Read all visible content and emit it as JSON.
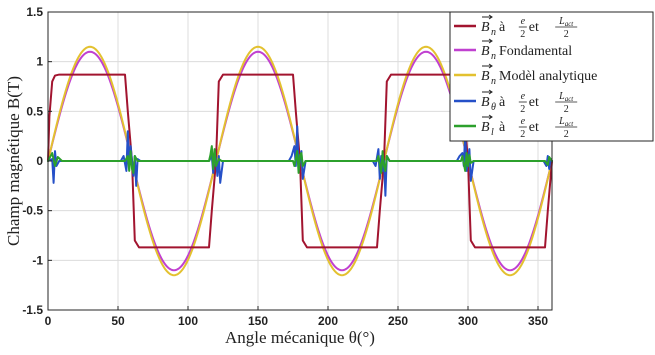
{
  "chart_data": {
    "type": "line",
    "xlabel": "Angle mécanique θ(°)",
    "ylabel": "Champ magnétique B(T)",
    "xlim": [
      0,
      360
    ],
    "ylim": [
      -1.5,
      1.5
    ],
    "xticks": [
      0,
      50,
      100,
      150,
      200,
      250,
      300,
      350
    ],
    "yticks": [
      -1.5,
      -1,
      -0.5,
      0,
      0.5,
      1,
      1.5
    ],
    "xtick_labels": [
      "0",
      "50",
      "100",
      "150",
      "200",
      "250",
      "300",
      "350"
    ],
    "ytick_labels": [
      "-1.5",
      "-1",
      "-0.5",
      "0",
      "0.5",
      "1",
      "1.5"
    ],
    "grid": true,
    "legend_position": "top-right",
    "series": [
      {
        "name": "B⃗n à e/2 et Lact/2",
        "color": "#a2142f",
        "x": [
          0,
          1,
          3,
          5,
          8,
          55,
          57,
          60,
          62,
          65,
          115,
          117,
          120,
          122,
          125,
          175,
          177,
          180,
          182,
          185,
          235,
          237,
          240,
          242,
          245,
          295,
          297,
          300,
          302,
          305,
          355,
          357,
          360
        ],
        "y": [
          0,
          0.45,
          0.8,
          0.86,
          0.87,
          0.87,
          0.5,
          0,
          -0.8,
          -0.87,
          -0.87,
          -0.5,
          0,
          0.8,
          0.87,
          0.87,
          0.5,
          0,
          -0.8,
          -0.87,
          -0.87,
          -0.5,
          0,
          0.8,
          0.87,
          0.87,
          0.5,
          0,
          -0.8,
          -0.87,
          -0.87,
          -0.5,
          0
        ]
      },
      {
        "name": "B⃗n Fondamental",
        "color": "#c040d0",
        "amplitude": 1.1,
        "periods": 3
      },
      {
        "name": "B⃗n Modèl analytique",
        "color": "#e3c12f",
        "amplitude": 1.15,
        "periods": 3
      },
      {
        "name": "B⃗θ à e/2 et Lact/2",
        "color": "#2550c8",
        "x": [
          0,
          3,
          4,
          5,
          6,
          8,
          52,
          54,
          56,
          57,
          58,
          59,
          60,
          61,
          62,
          63,
          64,
          66,
          115,
          117,
          118,
          119,
          120,
          121,
          122,
          123,
          125,
          172,
          174,
          176,
          177,
          178,
          179,
          180,
          181,
          182,
          184,
          232,
          234,
          236,
          237,
          238,
          239,
          240,
          241,
          242,
          244,
          292,
          294,
          296,
          297,
          298,
          299,
          300,
          301,
          302,
          304,
          354,
          356,
          357,
          358,
          359,
          360
        ],
        "y": [
          0,
          0.02,
          -0.22,
          0.1,
          -0.05,
          0,
          0,
          0.05,
          -0.1,
          0.3,
          -0.05,
          0.15,
          0,
          -0.15,
          0.05,
          -0.25,
          0.02,
          0,
          0,
          0.05,
          -0.12,
          0.08,
          0.02,
          -0.15,
          0.05,
          -0.22,
          0,
          0,
          0.05,
          0.15,
          -0.05,
          0.35,
          -0.1,
          0,
          0.1,
          -0.18,
          0,
          0,
          -0.05,
          0.12,
          -0.18,
          0.05,
          -0.1,
          0,
          -0.35,
          0.05,
          0,
          0,
          0.05,
          0.08,
          -0.05,
          0.28,
          -0.1,
          0,
          0.12,
          -0.2,
          0,
          0,
          -0.05,
          0.05,
          -0.08,
          0.02,
          0
        ]
      },
      {
        "name": "B⃗l à e/2 et Lact/2",
        "color": "#2ca02c",
        "x": [
          0,
          3,
          5,
          7,
          10,
          55,
          57,
          58,
          59,
          60,
          61,
          62,
          64,
          115,
          116,
          117,
          118,
          119,
          120,
          122,
          124,
          175,
          176,
          178,
          179,
          180,
          181,
          182,
          184,
          235,
          236,
          238,
          239,
          240,
          241,
          242,
          244,
          295,
          296,
          298,
          299,
          300,
          301,
          302,
          304,
          355,
          357,
          358,
          360
        ],
        "y": [
          0,
          0.08,
          -0.05,
          0.04,
          0,
          0,
          0.05,
          -0.1,
          0.1,
          -0.08,
          -0.12,
          0.05,
          0,
          0,
          0.06,
          0.15,
          -0.08,
          0.12,
          -0.05,
          0.02,
          0,
          0,
          -0.05,
          0.1,
          -0.12,
          0.06,
          0.08,
          -0.05,
          0,
          0,
          0.05,
          -0.12,
          0.1,
          -0.05,
          -0.1,
          0.05,
          0,
          0,
          0.05,
          -0.1,
          0.08,
          -0.05,
          0.06,
          -0.02,
          0,
          0,
          -0.04,
          0.04,
          0
        ]
      }
    ]
  }
}
